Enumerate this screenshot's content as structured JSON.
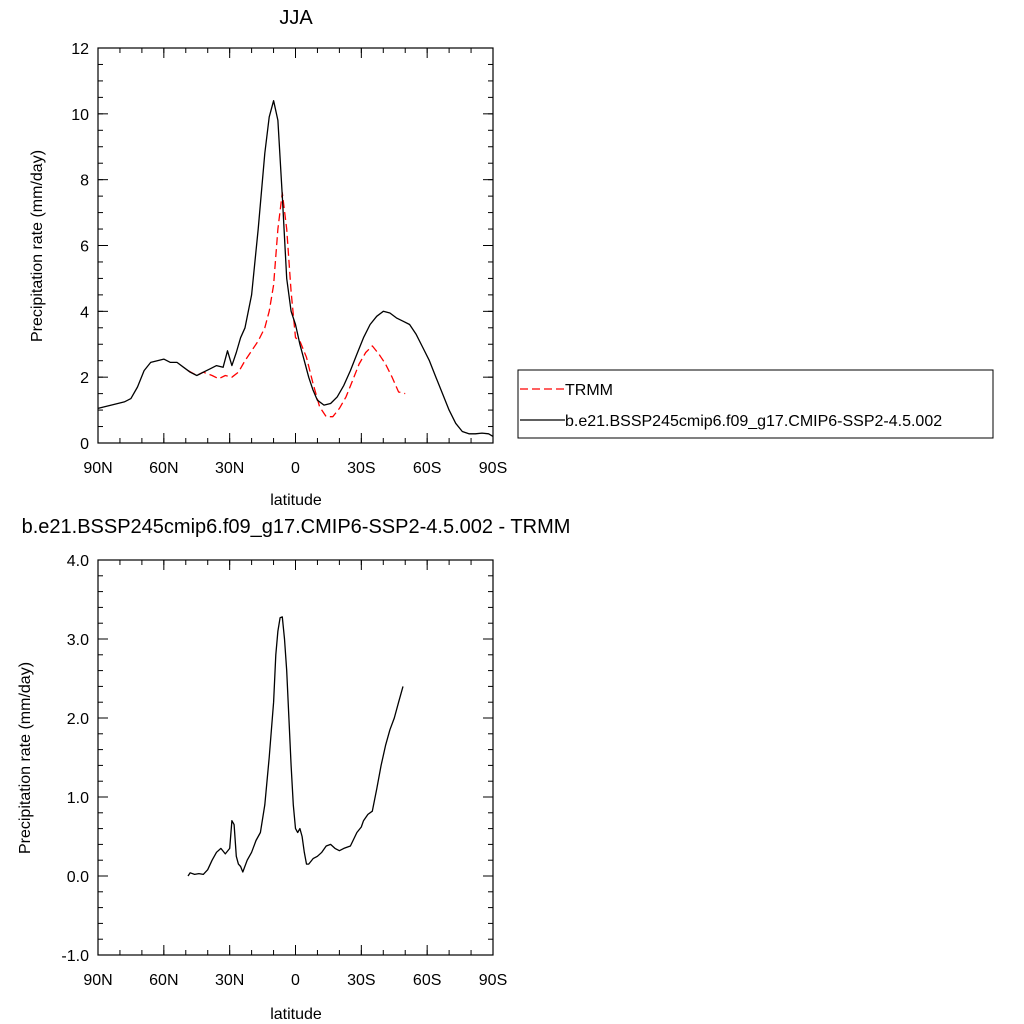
{
  "chart_data": [
    {
      "type": "line",
      "title": "JJA",
      "xlabel": "latitude",
      "ylabel": "Precipitation rate (mm/day)",
      "xlim": [
        90,
        -90
      ],
      "ylim": [
        0,
        12
      ],
      "x_ticks": [
        {
          "value": 90,
          "label": "90N"
        },
        {
          "value": 60,
          "label": "60N"
        },
        {
          "value": 30,
          "label": "30N"
        },
        {
          "value": 0,
          "label": "0"
        },
        {
          "value": -30,
          "label": "30S"
        },
        {
          "value": -60,
          "label": "60S"
        },
        {
          "value": -90,
          "label": "90S"
        }
      ],
      "y_ticks": [
        {
          "value": 0,
          "label": "0"
        },
        {
          "value": 2,
          "label": "2"
        },
        {
          "value": 4,
          "label": "4"
        },
        {
          "value": 6,
          "label": "6"
        },
        {
          "value": 8,
          "label": "8"
        },
        {
          "value": 10,
          "label": "10"
        },
        {
          "value": 12,
          "label": "12"
        }
      ],
      "legend": {
        "position": "right",
        "entries": [
          "TRMM",
          "b.e21.BSSP245cmip6.f09_g17.CMIP6-SSP2-4.5.002"
        ]
      },
      "series": [
        {
          "name": "TRMM",
          "color": "#ff0000",
          "dash": "dashed",
          "x": [
            49,
            45,
            42,
            38,
            35,
            32,
            29,
            26,
            23,
            20,
            17,
            14,
            12,
            10,
            8,
            6,
            4,
            2,
            0,
            -2,
            -5,
            -8,
            -11,
            -14,
            -17,
            -20,
            -23,
            -26,
            -29,
            -32,
            -35,
            -38,
            -41,
            -44,
            -47,
            -50
          ],
          "y": [
            2.2,
            2.05,
            2.15,
            2.05,
            1.95,
            2.05,
            2.0,
            2.15,
            2.5,
            2.8,
            3.1,
            3.5,
            4.0,
            4.8,
            6.5,
            7.6,
            6.5,
            4.6,
            3.2,
            3.1,
            2.6,
            1.8,
            1.1,
            0.8,
            0.8,
            1.05,
            1.4,
            1.9,
            2.4,
            2.75,
            2.95,
            2.7,
            2.4,
            2.0,
            1.55,
            1.5
          ]
        },
        {
          "name": "b.e21.BSSP245cmip6.f09_g17.CMIP6-SSP2-4.5.002",
          "color": "#000000",
          "dash": "solid",
          "x": [
            90,
            87,
            84,
            81,
            78,
            75,
            72,
            69,
            66,
            63,
            60,
            57,
            54,
            51,
            48,
            45,
            42,
            39,
            36,
            33,
            31,
            29,
            27,
            25,
            23,
            20,
            17,
            14,
            12,
            10,
            8,
            6,
            4,
            2,
            0,
            -2,
            -4,
            -6,
            -8,
            -10,
            -13,
            -16,
            -19,
            -22,
            -25,
            -28,
            -31,
            -34,
            -37,
            -40,
            -43,
            -46,
            -49,
            -52,
            -55,
            -58,
            -61,
            -64,
            -67,
            -70,
            -73,
            -76,
            -79,
            -82,
            -85,
            -88,
            -90
          ],
          "y": [
            1.05,
            1.1,
            1.15,
            1.2,
            1.25,
            1.35,
            1.7,
            2.2,
            2.45,
            2.5,
            2.55,
            2.45,
            2.45,
            2.3,
            2.15,
            2.05,
            2.15,
            2.25,
            2.35,
            2.3,
            2.8,
            2.35,
            2.75,
            3.2,
            3.5,
            4.5,
            6.5,
            8.8,
            9.9,
            10.4,
            9.8,
            7.5,
            5.0,
            4.0,
            3.6,
            3.0,
            2.5,
            2.0,
            1.6,
            1.3,
            1.15,
            1.2,
            1.4,
            1.75,
            2.2,
            2.7,
            3.2,
            3.6,
            3.85,
            4.0,
            3.95,
            3.8,
            3.7,
            3.6,
            3.3,
            2.9,
            2.5,
            2.0,
            1.5,
            1.0,
            0.6,
            0.35,
            0.28,
            0.28,
            0.3,
            0.28,
            0.2
          ]
        }
      ]
    },
    {
      "type": "line",
      "title": "b.e21.BSSP245cmip6.f09_g17.CMIP6-SSP2-4.5.002 - TRMM",
      "xlabel": "latitude",
      "ylabel": "Precipitation rate (mm/day)",
      "xlim": [
        90,
        -90
      ],
      "ylim": [
        -1,
        4
      ],
      "x_ticks": [
        {
          "value": 90,
          "label": "90N"
        },
        {
          "value": 60,
          "label": "60N"
        },
        {
          "value": 30,
          "label": "30N"
        },
        {
          "value": 0,
          "label": "0"
        },
        {
          "value": -30,
          "label": "30S"
        },
        {
          "value": -60,
          "label": "60S"
        },
        {
          "value": -90,
          "label": "90S"
        }
      ],
      "y_ticks": [
        {
          "value": -1,
          "label": "-1.0"
        },
        {
          "value": 0,
          "label": "0.0"
        },
        {
          "value": 1,
          "label": "1.0"
        },
        {
          "value": 2,
          "label": "2.0"
        },
        {
          "value": 3,
          "label": "3.0"
        },
        {
          "value": 4,
          "label": "4.0"
        }
      ],
      "series": [
        {
          "color": "#000000",
          "dash": "solid",
          "x": [
            49,
            48,
            46,
            44,
            42,
            40,
            38,
            36,
            34,
            32,
            30,
            29,
            28,
            27,
            26,
            25,
            24,
            22,
            20,
            18,
            16,
            14,
            13,
            12,
            10,
            9,
            8,
            7,
            6,
            5,
            4,
            3,
            2,
            1,
            0,
            -1,
            -2,
            -3,
            -4,
            -5,
            -6,
            -8,
            -10,
            -12,
            -14,
            -16,
            -18,
            -20,
            -22,
            -25,
            -28,
            -30,
            -31,
            -33,
            -35,
            -37,
            -39,
            -41,
            -43,
            -45,
            -47,
            -49
          ],
          "y": [
            0.0,
            0.04,
            0.02,
            0.03,
            0.02,
            0.08,
            0.2,
            0.3,
            0.35,
            0.28,
            0.35,
            0.7,
            0.65,
            0.25,
            0.15,
            0.12,
            0.05,
            0.2,
            0.3,
            0.45,
            0.55,
            0.9,
            1.2,
            1.5,
            2.2,
            2.8,
            3.1,
            3.27,
            3.28,
            3.0,
            2.6,
            2.0,
            1.4,
            0.9,
            0.6,
            0.55,
            0.6,
            0.5,
            0.3,
            0.15,
            0.15,
            0.22,
            0.25,
            0.3,
            0.38,
            0.4,
            0.35,
            0.32,
            0.35,
            0.38,
            0.55,
            0.62,
            0.7,
            0.78,
            0.82,
            1.1,
            1.4,
            1.65,
            1.85,
            2.0,
            2.2,
            2.4
          ]
        }
      ]
    }
  ]
}
